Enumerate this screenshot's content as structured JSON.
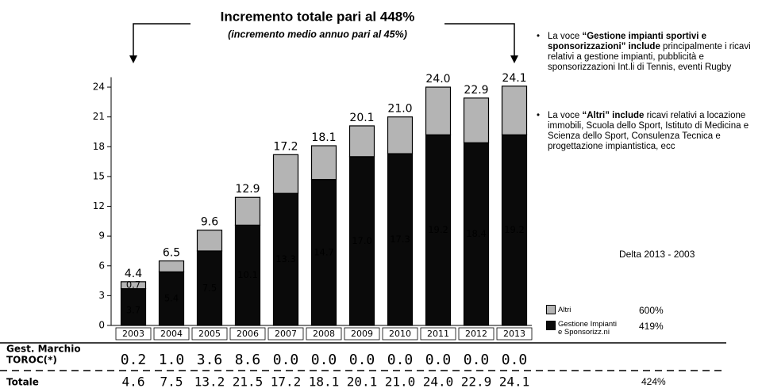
{
  "chart_data": {
    "type": "stacked_bar",
    "title": "Incremento totale pari al 448%",
    "subtitle": "(incremento medio annuo pari al 45%)",
    "categories": [
      "2003",
      "2004",
      "2005",
      "2006",
      "2007",
      "2008",
      "2009",
      "2010",
      "2011",
      "2012",
      "2013"
    ],
    "series": [
      {
        "name": "Gestione Impianti e Sponsorizz.ni",
        "color": "#0a0a0a",
        "values": [
          3.7,
          5.4,
          7.5,
          10.1,
          13.3,
          14.7,
          17.0,
          17.3,
          19.2,
          18.4,
          19.2
        ],
        "value_labels": [
          "3.7",
          "5.4",
          "7.5",
          "10.1",
          "13.3",
          "14.7",
          "17.0",
          "17.3",
          "19.2",
          "18.4",
          "19.2"
        ]
      },
      {
        "name": "Altri",
        "color": "#b4b4b4",
        "values": [
          0.7,
          1.1,
          2.1,
          2.8,
          3.9,
          3.4,
          3.1,
          3.7,
          4.8,
          4.5,
          4.9
        ],
        "value_labels": [
          "0.7",
          null,
          null,
          null,
          null,
          null,
          null,
          null,
          null,
          null,
          null
        ]
      }
    ],
    "total_labels": [
      "4.4",
      "6.5",
      "9.6",
      "12.9",
      "17.2",
      "18.1",
      "20.1",
      "21.0",
      "24.0",
      "22.9",
      "24.1"
    ],
    "ylim": [
      0,
      25
    ],
    "yticks": [
      0,
      3,
      6,
      9,
      12,
      15,
      18,
      21,
      24
    ]
  },
  "delta": {
    "title": "Delta 2013 - 2003",
    "values": [
      "419%",
      "600%"
    ],
    "total": "424%"
  },
  "table": {
    "rows": [
      {
        "label": [
          "Gest. Marchio",
          "TOROC(*)"
        ],
        "values": [
          "0.2",
          "1.0",
          "3.6",
          "8.6",
          "0.0",
          "0.0",
          "0.0",
          "0.0",
          "0.0",
          "0.0",
          "0.0"
        ]
      },
      {
        "label": [
          "Totale"
        ],
        "values": [
          "4.6",
          "7.5",
          "13.2",
          "21.5",
          "17.2",
          "18.1",
          "20.1",
          "21.0",
          "24.0",
          "22.9",
          "24.1"
        ]
      }
    ]
  },
  "notes": [
    {
      "intro": "La voce ",
      "bold": "“Gestione impianti sportivi e sponsorizzazioni” include",
      "rest": " principalmente i ricavi relativi a gestione impianti, pubblicità e sponsorizzazioni Int.li di Tennis, eventi Rugby"
    },
    {
      "intro": "La voce ",
      "bold": "“Altri” include",
      "rest": " ricavi relativi a locazione immobili, Scuola dello Sport, Istituto di Medicina e Scienza dello Sport, Consulenza Tecnica e progettazione impiantistica, ecc"
    }
  ]
}
